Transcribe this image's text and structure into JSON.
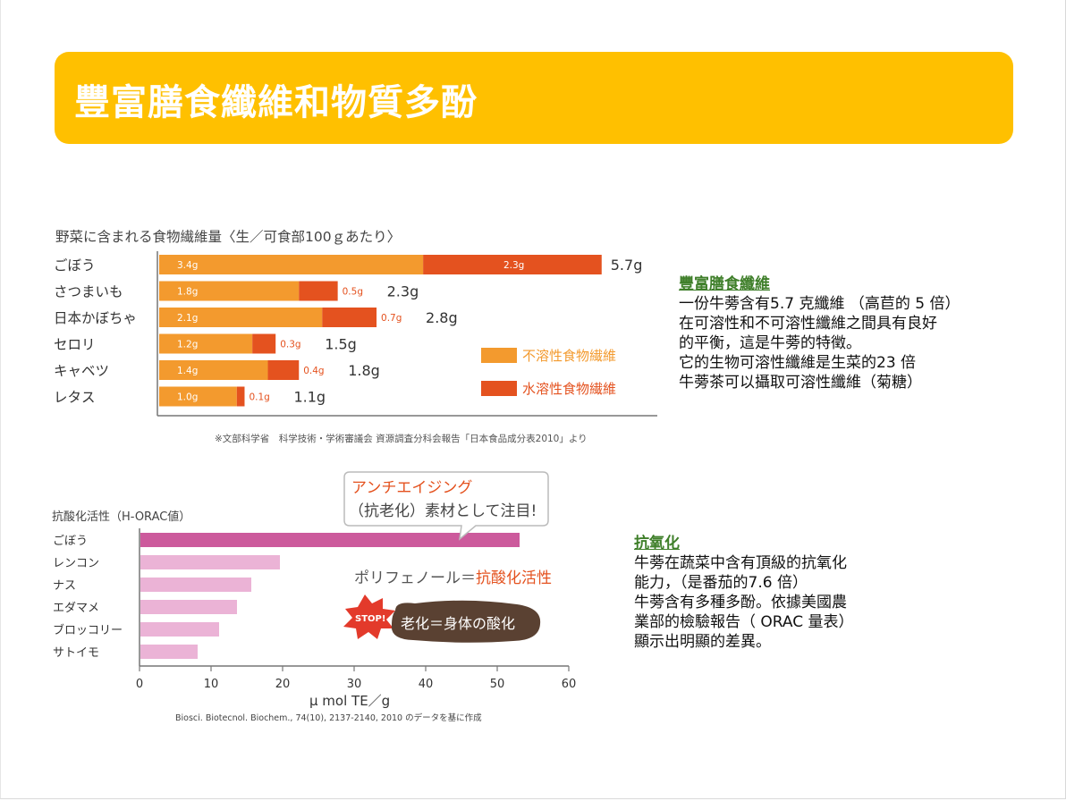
{
  "title": "豐富膳食纖維和物質多酚",
  "fiber_chart": {
    "title": "野菜に含まれる食物繊維量〈生／可食部100ｇあたり〉",
    "source": "※文部科学省　科学技術・学術審議会 資源調査分科会報告「日本食品成分表2010」より",
    "legend_insoluble": "不溶性食物繊維",
    "legend_soluble": "水溶性食物繊維"
  },
  "orac_chart": {
    "title": "抗酸化活性（H-ORAC値）",
    "xlabel": "μ mol TE／g",
    "source": "Biosci. Biotecnol. Biochem., 74(10), 2137-2140, 2010 のデータを基に作成",
    "bubble_line1": "アンチエイジング",
    "bubble_line2": "（抗老化）素材として注目!",
    "polyphenol_prefix": "ポリフェノール＝",
    "polyphenol_highlight": "抗酸化活性",
    "stop_label": "STOP!",
    "cloud_text": "老化＝身体の酸化"
  },
  "chart_data": [
    {
      "type": "bar",
      "orientation": "horizontal",
      "stacked": true,
      "categories": [
        "ごぼう",
        "さつまいも",
        "日本かぼちゃ",
        "セロリ",
        "キャベツ",
        "レタス"
      ],
      "series": [
        {
          "name": "不溶性食物繊維",
          "values": [
            3.4,
            1.8,
            2.1,
            1.2,
            1.4,
            1.0
          ],
          "labels": [
            "3.4g",
            "1.8g",
            "2.1g",
            "1.2g",
            "1.4g",
            "1.0g"
          ],
          "color": "#f39a2e"
        },
        {
          "name": "水溶性食物繊維",
          "values": [
            2.3,
            0.5,
            0.7,
            0.3,
            0.4,
            0.1
          ],
          "labels": [
            "2.3g",
            "0.5g",
            "0.7g",
            "0.3g",
            "0.4g",
            "0.1g"
          ],
          "color": "#e4521f"
        }
      ],
      "totals": [
        "5.7g",
        "2.3g",
        "2.8g",
        "1.5g",
        "1.8g",
        "1.1g"
      ],
      "legend": "right"
    },
    {
      "type": "bar",
      "orientation": "horizontal",
      "categories": [
        "ごぼう",
        "レンコン",
        "ナス",
        "エダマメ",
        "ブロッコリー",
        "サトイモ"
      ],
      "values": [
        53,
        19.5,
        15.5,
        13.5,
        11,
        8
      ],
      "colors": [
        "#cc5a9c",
        "#ebb3d6",
        "#ebb3d6",
        "#ebb3d6",
        "#ebb3d6",
        "#ebb3d6"
      ],
      "xlim": [
        0,
        60
      ],
      "xticks": [
        "0",
        "10",
        "20",
        "30",
        "40",
        "50",
        "60"
      ]
    }
  ],
  "fiber_text": {
    "head": "豐富膳食纖維",
    "lines": [
      "一份牛蒡含有5.7 克纖維 （高苣的 5 倍）",
      "在可溶性和不可溶性纖維之間具有良好",
      "的平衡，這是牛蒡的特徵。",
      "它的生物可溶性纖維是生菜的23 倍",
      "牛蒡茶可以攝取可溶性纖維（菊糖）"
    ]
  },
  "antiox_text": {
    "head": "抗氧化",
    "lines": [
      "牛蒡在蔬菜中含有頂級的抗氧化",
      "能力，（是番茄的7.6 倍）",
      "牛蒡含有多種多酚。依據美國農",
      "業部的檢驗報告（ ORAC 量表）",
      "顯示出明顯的差異。"
    ]
  }
}
